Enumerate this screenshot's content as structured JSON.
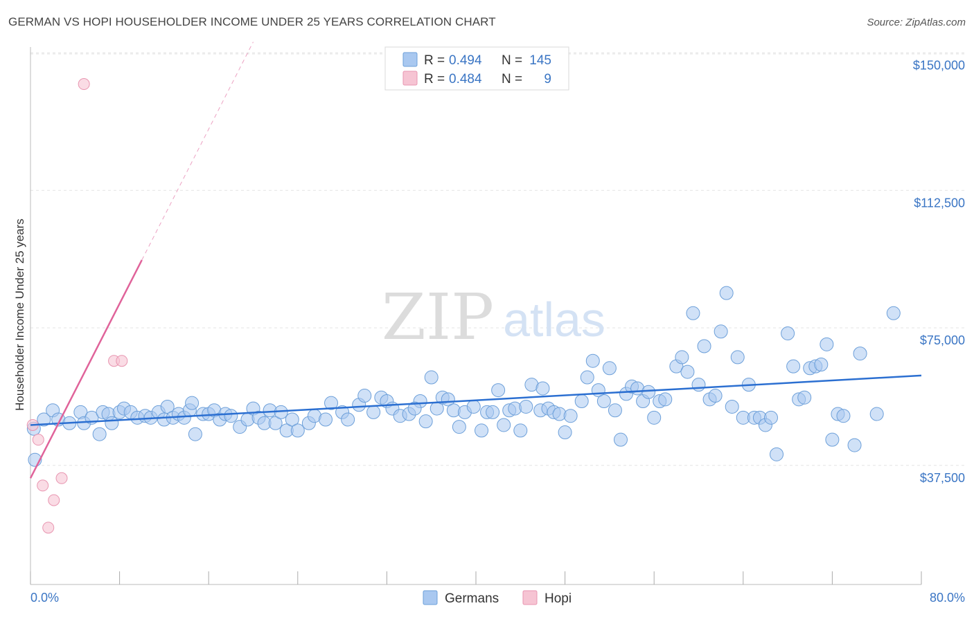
{
  "title": "GERMAN VS HOPI HOUSEHOLDER INCOME UNDER 25 YEARS CORRELATION CHART",
  "source": "Source: ZipAtlas.com",
  "watermark": {
    "zip": "ZIP",
    "atlas": "atlas"
  },
  "colors": {
    "german_fill": "#a9c8f0",
    "german_stroke": "#6c9fd9",
    "german_line": "#2b6fd1",
    "hopi_fill": "#f6c4d3",
    "hopi_stroke": "#e895b0",
    "hopi_line": "#e0639a",
    "grid": "#e3e3e3",
    "tick_text": "#3a75c4"
  },
  "chart_data": {
    "type": "scatter",
    "title": "GERMAN VS HOPI HOUSEHOLDER INCOME UNDER 25 YEARS CORRELATION CHART",
    "xlabel": "",
    "ylabel": "Householder Income Under 25 years",
    "xlim": [
      0,
      80
    ],
    "ylim": [
      5000,
      155000
    ],
    "x_tick_labels": [
      "0.0%",
      "80.0%"
    ],
    "y_ticks": [
      37500,
      75000,
      112500,
      150000
    ],
    "y_tick_labels": [
      "$37,500",
      "$75,000",
      "$112,500",
      "$150,000"
    ],
    "grid": "horizontal dashed",
    "legend_position": "top-center",
    "bottom_legend": [
      "Germans",
      "Hopi"
    ],
    "stats": [
      {
        "name": "Germans",
        "R": "0.494",
        "N": "145"
      },
      {
        "name": "Hopi",
        "R": "0.484",
        "N": "9"
      }
    ],
    "series": [
      {
        "name": "Germans",
        "trend": [
          [
            0,
            48500
          ],
          [
            80,
            62000
          ]
        ],
        "points": [
          [
            0.3,
            47500
          ],
          [
            0.4,
            39000
          ],
          [
            1.2,
            50000
          ],
          [
            2,
            52500
          ],
          [
            2.5,
            50000
          ],
          [
            3.5,
            49000
          ],
          [
            4.5,
            52000
          ],
          [
            4.8,
            49000
          ],
          [
            5.5,
            50500
          ],
          [
            6.2,
            46000
          ],
          [
            6.5,
            52000
          ],
          [
            7,
            51500
          ],
          [
            7.3,
            49000
          ],
          [
            8,
            52000
          ],
          [
            8.4,
            53000
          ],
          [
            9,
            52000
          ],
          [
            9.6,
            50500
          ],
          [
            10.3,
            51000
          ],
          [
            10.8,
            50500
          ],
          [
            11.5,
            52000
          ],
          [
            12,
            50000
          ],
          [
            12.3,
            53500
          ],
          [
            12.8,
            50500
          ],
          [
            13.3,
            51500
          ],
          [
            13.8,
            50500
          ],
          [
            14.3,
            52500
          ],
          [
            14.8,
            46000
          ],
          [
            14.5,
            54500
          ],
          [
            15.5,
            51500
          ],
          [
            16,
            51500
          ],
          [
            16.5,
            52500
          ],
          [
            17,
            50000
          ],
          [
            17.5,
            51500
          ],
          [
            18,
            51000
          ],
          [
            18.8,
            48000
          ],
          [
            19.5,
            50000
          ],
          [
            20,
            53000
          ],
          [
            20.5,
            50500
          ],
          [
            21,
            49000
          ],
          [
            21.5,
            52500
          ],
          [
            22,
            49000
          ],
          [
            22.5,
            52000
          ],
          [
            23,
            47000
          ],
          [
            23.5,
            50000
          ],
          [
            24,
            47000
          ],
          [
            25,
            49000
          ],
          [
            25.5,
            51000
          ],
          [
            26.5,
            50000
          ],
          [
            27,
            54500
          ],
          [
            28,
            52000
          ],
          [
            28.5,
            50000
          ],
          [
            29.5,
            54000
          ],
          [
            30,
            56500
          ],
          [
            30.8,
            52000
          ],
          [
            31.5,
            56000
          ],
          [
            32,
            55000
          ],
          [
            32.5,
            53000
          ],
          [
            33.2,
            51000
          ],
          [
            34,
            51500
          ],
          [
            35,
            55000
          ],
          [
            34.5,
            53000
          ],
          [
            35.5,
            49500
          ],
          [
            36,
            61500
          ],
          [
            36.5,
            53000
          ],
          [
            37,
            56000
          ],
          [
            37.5,
            55500
          ],
          [
            38,
            52500
          ],
          [
            38.5,
            48000
          ],
          [
            39,
            52000
          ],
          [
            39.8,
            53500
          ],
          [
            40.5,
            47000
          ],
          [
            41,
            52000
          ],
          [
            41.5,
            52000
          ],
          [
            42,
            58000
          ],
          [
            42.5,
            48500
          ],
          [
            43,
            52500
          ],
          [
            43.5,
            53000
          ],
          [
            44,
            47000
          ],
          [
            44.5,
            53500
          ],
          [
            45,
            59500
          ],
          [
            45.8,
            52500
          ],
          [
            46,
            58500
          ],
          [
            46.5,
            53000
          ],
          [
            47,
            52000
          ],
          [
            47.5,
            51500
          ],
          [
            48,
            46500
          ],
          [
            48.5,
            51000
          ],
          [
            49.5,
            55000
          ],
          [
            50,
            61500
          ],
          [
            50.5,
            66000
          ],
          [
            51,
            58000
          ],
          [
            51.5,
            55000
          ],
          [
            52,
            64000
          ],
          [
            52.5,
            52500
          ],
          [
            53,
            44500
          ],
          [
            53.5,
            57000
          ],
          [
            54,
            59000
          ],
          [
            54.5,
            58500
          ],
          [
            55,
            55000
          ],
          [
            55.5,
            57500
          ],
          [
            56,
            50500
          ],
          [
            56.5,
            55000
          ],
          [
            57,
            55500
          ],
          [
            58,
            64500
          ],
          [
            58.5,
            67000
          ],
          [
            59,
            63000
          ],
          [
            59.5,
            79000
          ],
          [
            60,
            59500
          ],
          [
            60.5,
            70000
          ],
          [
            61,
            55500
          ],
          [
            61.5,
            56500
          ],
          [
            62,
            74000
          ],
          [
            62.5,
            84500
          ],
          [
            63,
            53500
          ],
          [
            63.5,
            67000
          ],
          [
            64,
            50500
          ],
          [
            64.5,
            59500
          ],
          [
            65,
            50500
          ],
          [
            65.5,
            50500
          ],
          [
            66,
            48500
          ],
          [
            66.5,
            50500
          ],
          [
            67,
            40500
          ],
          [
            68,
            73500
          ],
          [
            68.5,
            64500
          ],
          [
            69,
            55500
          ],
          [
            69.5,
            56000
          ],
          [
            70,
            64000
          ],
          [
            70.5,
            64500
          ],
          [
            71,
            65000
          ],
          [
            71.5,
            70500
          ],
          [
            72,
            44500
          ],
          [
            72.5,
            51500
          ],
          [
            73,
            51000
          ],
          [
            74,
            43000
          ],
          [
            74.5,
            68000
          ],
          [
            76,
            51500
          ],
          [
            77.5,
            79000
          ]
        ]
      },
      {
        "name": "Hopi",
        "trend_solid": [
          [
            0,
            34000
          ],
          [
            10,
            93500
          ]
        ],
        "trend_dashed": [
          [
            10,
            93500
          ],
          [
            20,
            153000
          ]
        ],
        "points": [
          [
            0.2,
            48500
          ],
          [
            0.7,
            44500
          ],
          [
            1.1,
            32000
          ],
          [
            1.6,
            20500
          ],
          [
            2.1,
            28000
          ],
          [
            2.8,
            34000
          ],
          [
            4.8,
            141500
          ],
          [
            7.5,
            66000
          ],
          [
            8.2,
            66000
          ]
        ]
      }
    ]
  }
}
